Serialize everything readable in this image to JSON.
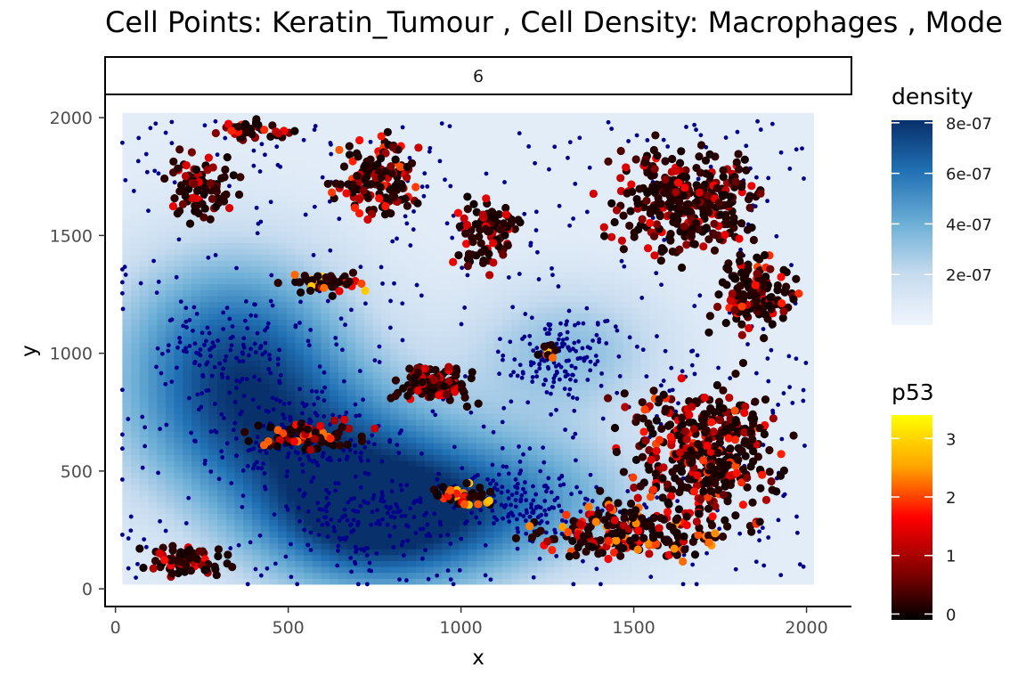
{
  "chart_data": {
    "type": "scatter",
    "title": "Cell Points: Keratin_Tumour , Cell Density: Macrophages , Mode",
    "facet_label": "6",
    "xlabel": "x",
    "ylabel": "y",
    "xlim": [
      -30,
      2130
    ],
    "ylim": [
      -75,
      2095
    ],
    "x_ticks": [
      0,
      500,
      1000,
      1500,
      2000
    ],
    "y_ticks": [
      0,
      500,
      1000,
      1500,
      2000
    ],
    "grid": false,
    "legend_position": "right",
    "density_legend": {
      "title": "density",
      "breaks": [
        "2e-07",
        "4e-07",
        "6e-07",
        "8e-07"
      ],
      "break_values": [
        2e-07,
        4e-07,
        6e-07,
        8e-07
      ],
      "range": [
        0,
        8.1e-07
      ],
      "colors": [
        "#f0f5fc",
        "#c6dbef",
        "#6baed6",
        "#2171b5",
        "#08306b"
      ]
    },
    "p53_legend": {
      "title": "p53",
      "breaks": [
        "0",
        "1",
        "2",
        "3"
      ],
      "break_values": [
        0,
        1,
        2,
        3
      ],
      "range": [
        -0.1,
        3.4
      ],
      "colors": [
        "#000000",
        "#8b0000",
        "#ff0000",
        "#ffa500",
        "#ffff00"
      ]
    },
    "density_hotspots": [
      {
        "x": 750,
        "y": 280,
        "sx": 260,
        "sy": 220,
        "amp": 1.0
      },
      {
        "x": 330,
        "y": 1000,
        "sx": 240,
        "sy": 300,
        "amp": 0.75
      },
      {
        "x": 520,
        "y": 620,
        "sx": 320,
        "sy": 240,
        "amp": 0.55
      },
      {
        "x": 1300,
        "y": 1000,
        "sx": 200,
        "sy": 200,
        "amp": 0.35
      },
      {
        "x": 1200,
        "y": 380,
        "sx": 250,
        "sy": 200,
        "amp": 0.4
      }
    ],
    "series": [
      {
        "name": "Macrophages",
        "color": "#00008b"
      },
      {
        "name": "Keratin_Tumour",
        "color_by": "p53"
      }
    ],
    "tumour_clusters": [
      {
        "x": 250,
        "y": 1700,
        "rx": 140,
        "ry": 200,
        "n": 90,
        "p53": 0.1
      },
      {
        "x": 400,
        "y": 1950,
        "rx": 160,
        "ry": 60,
        "n": 45,
        "p53": 0.6
      },
      {
        "x": 760,
        "y": 1750,
        "rx": 180,
        "ry": 250,
        "n": 140,
        "p53": 0.5
      },
      {
        "x": 1080,
        "y": 1500,
        "rx": 140,
        "ry": 220,
        "n": 90,
        "p53": 0.1
      },
      {
        "x": 1650,
        "y": 1650,
        "rx": 300,
        "ry": 320,
        "n": 320,
        "p53": 0.1
      },
      {
        "x": 1850,
        "y": 1250,
        "rx": 180,
        "ry": 220,
        "n": 140,
        "p53": 0.4
      },
      {
        "x": 1700,
        "y": 600,
        "rx": 320,
        "ry": 380,
        "n": 380,
        "p53": 0.5
      },
      {
        "x": 1500,
        "y": 250,
        "rx": 420,
        "ry": 180,
        "n": 230,
        "p53": 1.0
      },
      {
        "x": 200,
        "y": 120,
        "rx": 160,
        "ry": 100,
        "n": 80,
        "p53": 0.3
      },
      {
        "x": 920,
        "y": 870,
        "rx": 150,
        "ry": 110,
        "n": 110,
        "p53": 0.1
      },
      {
        "x": 600,
        "y": 1300,
        "rx": 140,
        "ry": 60,
        "n": 50,
        "p53": 1.5
      },
      {
        "x": 1250,
        "y": 1000,
        "rx": 40,
        "ry": 50,
        "n": 12,
        "p53": 1.6
      },
      {
        "x": 1000,
        "y": 400,
        "rx": 120,
        "ry": 70,
        "n": 40,
        "p53": 1.4
      },
      {
        "x": 550,
        "y": 650,
        "rx": 250,
        "ry": 90,
        "n": 70,
        "p53": 0.8
      }
    ]
  }
}
